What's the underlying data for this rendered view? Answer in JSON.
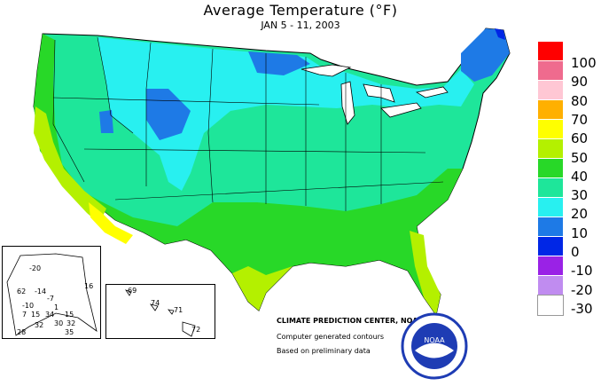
{
  "title": "Average Temperature (°F)",
  "subtitle": "JAN 5 - 11, 2003",
  "legend": {
    "values": [
      "100",
      "90",
      "80",
      "70",
      "60",
      "50",
      "40",
      "30",
      "20",
      "10",
      "0",
      "-10",
      "-20",
      "-30"
    ],
    "colors": [
      "#ff0000",
      "#ef6b8e",
      "#ffc7d4",
      "#ffb000",
      "#ffff00",
      "#b4f000",
      "#28d828",
      "#1ee69a",
      "#28f0f0",
      "#1e7ae6",
      "#0026e6",
      "#9a22e6",
      "#c08cf0",
      "#ffffff"
    ]
  },
  "credits": {
    "center": "CLIMATE PREDICTION CENTER, NOAA",
    "contours": "Computer generated contours",
    "prelim": "Based on preliminary data"
  },
  "alaska_labels": [
    "-20",
    "16",
    "62",
    "-14",
    "-10",
    "-7",
    "7",
    "15",
    "34",
    "1",
    "15",
    "32",
    "30",
    "32",
    "28",
    "35"
  ],
  "hawaii_labels": [
    "69",
    "74",
    "71",
    "72"
  ],
  "noaa_logo_text": "NOAA"
}
